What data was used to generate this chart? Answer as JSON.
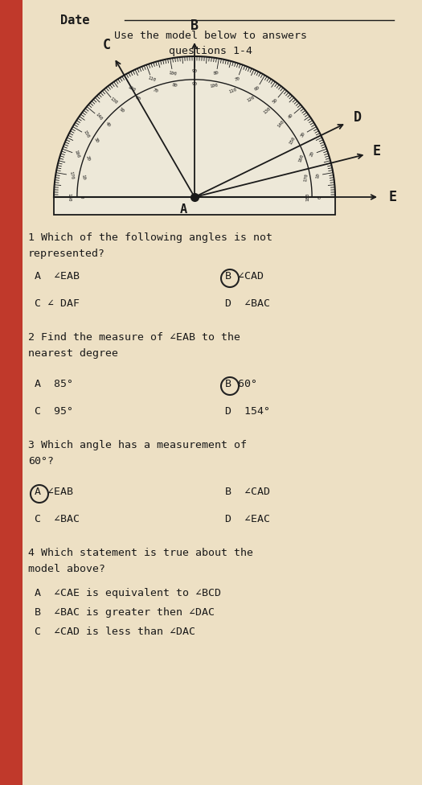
{
  "bg_color": "#ede0c4",
  "left_bar_color": "#c0392b",
  "font_color": "#1a1a1a",
  "circle_color": "#222222",
  "title_line1": "Use the model below to answers",
  "title_line2": "questions 1-4",
  "date_label": "Date",
  "vertex_label": "A",
  "ray_angles": [
    90,
    120,
    26,
    14
  ],
  "ray_names": [
    "B",
    "C",
    "D",
    "E"
  ],
  "q1_line1": "1 Which of the following angles is not",
  "q1_line2": "represented?",
  "q1_A": "A  ∠EAB",
  "q1_B": "B ∠CAD",
  "q1_C": "C ∠ DAF",
  "q1_D": "D  ∠BAC",
  "q1_circled": "B",
  "q2_line1": "2 Find the measure of ∠EAB to the",
  "q2_line2": "nearest degree",
  "q2_A": "A  85°",
  "q2_B": "B 60°",
  "q2_C": "C  95°",
  "q2_D": "D  154°",
  "q2_circled": "B",
  "q3_line1": "3 Which angle has a measurement of",
  "q3_line2": "60°?",
  "q3_A": "A ∠EAB",
  "q3_B": "B  ∠CAD",
  "q3_C": "C  ∠BAC",
  "q3_D": "D  ∠EAC",
  "q3_circled": "A",
  "q4_line1": "4 Which statement is true about the",
  "q4_line2": "model above?",
  "q4_A": "A  ∠CAE is equivalent to ∠BCD",
  "q4_B": "B  ∠BAC is greater then ∠DAC",
  "q4_C": "C  ∠CAD is less than ∠DAC"
}
